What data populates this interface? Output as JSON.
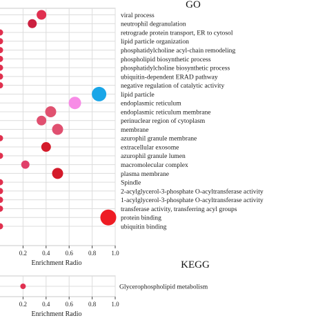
{
  "chart_data": [
    {
      "type": "scatter",
      "title": "GO",
      "xlabel": "Enrichment Radio",
      "ylabel": "",
      "xlim": [
        0,
        1.0
      ],
      "xticks": [
        "0.2",
        "0.4",
        "0.6",
        "0.8",
        "1.0"
      ],
      "xtick_values": [
        0.2,
        0.4,
        0.6,
        0.8,
        1.0
      ],
      "grid": true,
      "categories": [
        "viral process",
        "neutrophil degranulation",
        "retrograde protein transport, ER to cytosol",
        "lipid particle organization",
        "phosphatidylcholine acyl-chain remodeling",
        "phospholipid biosynthetic process",
        "phosphatidylcholine biosynthetic process",
        "ubiquitin-dependent ERAD pathway",
        "negative regulation of catalytic activity",
        "lipid particle",
        "endoplasmic reticulum",
        "endoplasmic reticulum membrane",
        "perinuclear region of cytoplasm",
        "membrane",
        "azurophil granule membrane",
        "extracellular exosome",
        "azurophil granule lumen",
        "macromolecular complex",
        "plasma membrane",
        "Spindle",
        "2-acylglycerol-3-phosphate O-acyltransferase activity",
        "1-acylglycerol-3-phosphate O-acyltransferase activity",
        "transferase activity, transferring acyl groups",
        "protein binding",
        "ubiquitin binding"
      ],
      "x": [
        0.36,
        0.28,
        0.0,
        0.0,
        0.0,
        0.0,
        0.0,
        0.0,
        0.0,
        0.86,
        0.65,
        0.44,
        0.36,
        0.5,
        0.0,
        0.4,
        0.0,
        0.22,
        0.5,
        0.0,
        0.0,
        0.0,
        0.0,
        0.94,
        0.0
      ],
      "size": [
        7,
        6.5,
        4.5,
        4.5,
        4.5,
        4.5,
        4.5,
        4.5,
        4.5,
        10.5,
        9,
        8,
        7,
        8,
        4.5,
        7,
        4.5,
        6,
        8,
        4.5,
        4.5,
        4.5,
        4.5,
        11.5,
        4.5
      ],
      "colors": [
        "#e03050",
        "#cc2040",
        "#e0304e",
        "#e0304e",
        "#e0304e",
        "#e0304e",
        "#e0304e",
        "#e0304e",
        "#e0304e",
        "#1aa6e8",
        "#f78be6",
        "#e05270",
        "#e05070",
        "#e05070",
        "#e0304e",
        "#d41a2a",
        "#e0304e",
        "#e0406a",
        "#d41a2a",
        "#e0304e",
        "#e0304e",
        "#e0304e",
        "#e0304e",
        "#ee1c24",
        "#e0304e"
      ]
    },
    {
      "type": "scatter",
      "title": "KEGG",
      "xlabel": "Enrichment Radio",
      "ylabel": "",
      "xlim": [
        0,
        1.0
      ],
      "xticks": [
        "0.2",
        "0.4",
        "0.6",
        "0.8",
        "1.0"
      ],
      "xtick_values": [
        0.2,
        0.4,
        0.6,
        0.8,
        1.0
      ],
      "grid": true,
      "categories": [
        "Glycerophospholipid metabolism"
      ],
      "x": [
        0.2
      ],
      "size": [
        4
      ],
      "colors": [
        "#e03050"
      ]
    }
  ]
}
